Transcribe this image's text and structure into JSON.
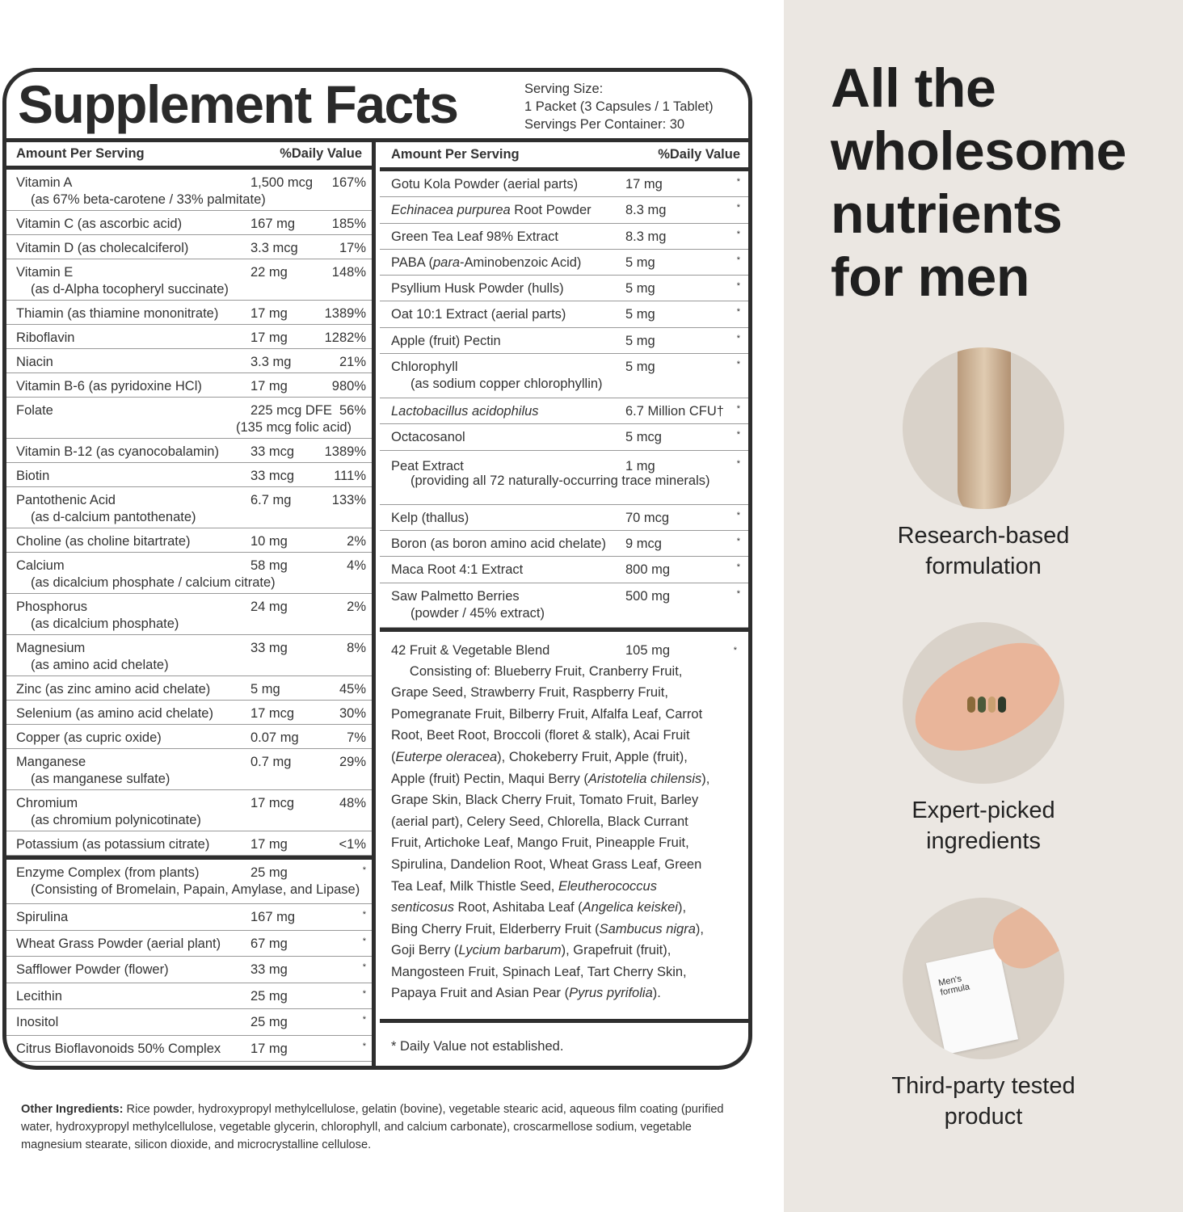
{
  "panel": {
    "title": "Supplement Facts",
    "serving": [
      "Serving Size:",
      "1 Packet (3 Capsules / 1 Tablet)",
      "Servings Per Container: 30"
    ],
    "col_header": {
      "amount": "Amount Per Serving",
      "dv": "%Daily Value"
    }
  },
  "left_rows": [
    {
      "name": "Vitamin A",
      "sub": "(as 67% beta-carotene / 33% palmitate)",
      "amount": "1,500 mcg",
      "dv": "167%"
    },
    {
      "name": "Vitamin C (as ascorbic acid)",
      "amount": "167 mg",
      "dv": "185%"
    },
    {
      "name": "Vitamin D (as cholecalciferol)",
      "amount": "3.3 mcg",
      "dv": "17%"
    },
    {
      "name": "Vitamin E",
      "sub": "(as d-Alpha tocopheryl succinate)",
      "amount": "22 mg",
      "dv": "148%"
    },
    {
      "name": "Thiamin (as thiamine mononitrate)",
      "amount": "17 mg",
      "dv": "1389%"
    },
    {
      "name": "Riboflavin",
      "amount": "17 mg",
      "dv": "1282%"
    },
    {
      "name": "Niacin",
      "amount": "3.3 mg",
      "dv": "21%"
    },
    {
      "name": "Vitamin B-6 (as pyridoxine HCl)",
      "amount": "17 mg",
      "dv": "980%"
    },
    {
      "name": "Folate",
      "sub": "(135 mcg folic acid)",
      "amount": "225 mcg DFE",
      "dv": "56%",
      "sub_right": true
    },
    {
      "name": "Vitamin B-12 (as cyanocobalamin)",
      "amount": "33 mcg",
      "dv": "1389%"
    },
    {
      "name": "Biotin",
      "amount": "33 mcg",
      "dv": "111%"
    },
    {
      "name": "Pantothenic Acid",
      "sub": "(as d-calcium pantothenate)",
      "amount": "6.7 mg",
      "dv": "133%"
    },
    {
      "name": "Choline (as choline bitartrate)",
      "amount": "10 mg",
      "dv": "2%"
    },
    {
      "name": "Calcium",
      "sub": "(as dicalcium phosphate / calcium citrate)",
      "amount": "58 mg",
      "dv": "4%"
    },
    {
      "name": "Phosphorus",
      "sub": "(as dicalcium phosphate)",
      "amount": "24 mg",
      "dv": "2%"
    },
    {
      "name": "Magnesium",
      "sub": "(as amino acid chelate)",
      "amount": "33 mg",
      "dv": "8%"
    },
    {
      "name": "Zinc (as zinc amino acid chelate)",
      "amount": "5 mg",
      "dv": "45%"
    },
    {
      "name": "Selenium (as amino acid chelate)",
      "amount": "17 mcg",
      "dv": "30%"
    },
    {
      "name": "Copper (as cupric oxide)",
      "amount": "0.07 mg",
      "dv": "7%"
    },
    {
      "name": "Manganese",
      "sub": "(as manganese sulfate)",
      "amount": "0.7 mg",
      "dv": "29%"
    },
    {
      "name": "Chromium",
      "sub": "(as chromium polynicotinate)",
      "amount": "17 mcg",
      "dv": "48%"
    },
    {
      "name": "Potassium (as potassium citrate)",
      "amount": "17 mg",
      "dv": "<1%"
    }
  ],
  "left_rows2": [
    {
      "name": "Enzyme Complex (from plants)",
      "sub": "(Consisting of Bromelain, Papain, Amylase, and Lipase)",
      "amount": "25 mg",
      "dv": "*"
    },
    {
      "name": "Spirulina",
      "amount": "167 mg",
      "dv": "*"
    },
    {
      "name": "Wheat Grass Powder (aerial plant)",
      "amount": "67 mg",
      "dv": "*"
    },
    {
      "name": "Safflower Powder (flower)",
      "amount": "33 mg",
      "dv": "*"
    },
    {
      "name": "Lecithin",
      "amount": "25 mg",
      "dv": "*"
    },
    {
      "name": "Inositol",
      "amount": "25 mg",
      "dv": "*"
    },
    {
      "name": "Citrus Bioflavonoids 50% Complex",
      "amount": "17 mg",
      "dv": "*"
    }
  ],
  "right_rows": [
    {
      "name": "Gotu Kola Powder (aerial parts)",
      "amount": "17 mg",
      "dv": "*"
    },
    {
      "name": "<i>Echinacea purpurea</i> Root Powder",
      "amount": "8.3 mg",
      "dv": "*"
    },
    {
      "name": "Green Tea Leaf 98% Extract",
      "amount": "8.3 mg",
      "dv": "*"
    },
    {
      "name": "PABA (<i>para</i>-Aminobenzoic Acid)",
      "amount": "5 mg",
      "dv": "*"
    },
    {
      "name": "Psyllium Husk Powder (hulls)",
      "amount": "5 mg",
      "dv": "*"
    },
    {
      "name": "Oat 10:1 Extract (aerial parts)",
      "amount": "5 mg",
      "dv": "*"
    },
    {
      "name": "Apple (fruit) Pectin",
      "amount": "5 mg",
      "dv": "*"
    },
    {
      "name": "Chlorophyll",
      "sub": "(as sodium copper chlorophyllin)",
      "amount": "5 mg",
      "dv": "*"
    },
    {
      "name": "<i>Lactobacillus acidophilus</i>",
      "amount": "6.7 Million CFU†",
      "dv": "*"
    },
    {
      "name": "Octacosanol",
      "amount": "5 mcg",
      "dv": "*"
    },
    {
      "name": "Peat Extract",
      "sub": "(providing all 72 naturally-occurring trace minerals)",
      "amount": "1 mg",
      "dv": "*",
      "tall": true
    },
    {
      "name": "Kelp (thallus)",
      "amount": "70 mcg",
      "dv": "*"
    },
    {
      "name": "Boron (as boron amino acid chelate)",
      "amount": "9 mcg",
      "dv": "*"
    },
    {
      "name": "Maca Root 4:1 Extract",
      "amount": "800 mg",
      "dv": "*"
    },
    {
      "name": "Saw Palmetto Berries",
      "sub": "(powder / 45% extract)",
      "amount": "500 mg",
      "dv": "*"
    }
  ],
  "blend": {
    "name": "42 Fruit &amp; Vegetable Blend",
    "amount": "105 mg",
    "dv": "*",
    "text": "&nbsp;&nbsp;&nbsp;&nbsp;&nbsp;Consisting of: Blueberry Fruit, Cranberry Fruit,<br>Grape Seed, Strawberry Fruit, Raspberry Fruit,<br>Pomegranate Fruit, Bilberry Fruit, Alfalfa Leaf, Carrot<br>Root, Beet Root, Broccoli (floret &amp; stalk), Acai Fruit<br>(<i>Euterpe oleracea</i>), Chokeberry Fruit, Apple (fruit),<br>Apple (fruit) Pectin, Maqui Berry (<i>Aristotelia chilensis</i>),<br>Grape Skin, Black Cherry Fruit, Tomato Fruit, Barley<br>(aerial part), Celery Seed, Chlorella, Black Currant<br>Fruit, Artichoke Leaf, Mango Fruit, Pineapple Fruit,<br>Spirulina, Dandelion Root, Wheat Grass Leaf, Green<br>Tea Leaf, Milk Thistle Seed, <i>Eleutherococcus</i><br><i>senticosus</i> Root, Ashitaba Leaf (<i>Angelica keiskei</i>),<br>Bing Cherry Fruit, Elderberry Fruit (<i>Sambucus nigra</i>),<br>Goji Berry (<i>Lycium barbarum</i>), Grapefruit (fruit),<br>Mangosteen Fruit, Spinach Leaf, Tart Cherry Skin,<br>Papaya Fruit and Asian Pear (<i>Pyrus pyrifolia</i>)."
  },
  "footnote": "* Daily Value not established.",
  "other": {
    "label": "Other Ingredients:",
    "text": " Rice powder, hydroxypropyl methylcellulose, gelatin (bovine), vegetable stearic acid, aqueous film coating (purified water, hydroxypropyl methylcellulose, vegetable glycerin, chlorophyll, and calcium carbonate), croscarmellose sodium, vegetable magnesium stearate, silicon dioxide, and microcrystalline cellulose."
  },
  "side": {
    "headline": [
      "All the",
      "wholesome",
      "nutrients",
      "for men"
    ],
    "features": [
      {
        "icon": "capsule-image",
        "caption": [
          "Research-based",
          "formulation"
        ]
      },
      {
        "icon": "hand-capsules-image",
        "caption": [
          "Expert-picked",
          "ingredients"
        ]
      },
      {
        "icon": "packet-image",
        "caption": [
          "Third-party tested",
          "product"
        ],
        "packet_text": [
          "Men's",
          "formula"
        ]
      }
    ],
    "bg": "#ebe7e2"
  }
}
